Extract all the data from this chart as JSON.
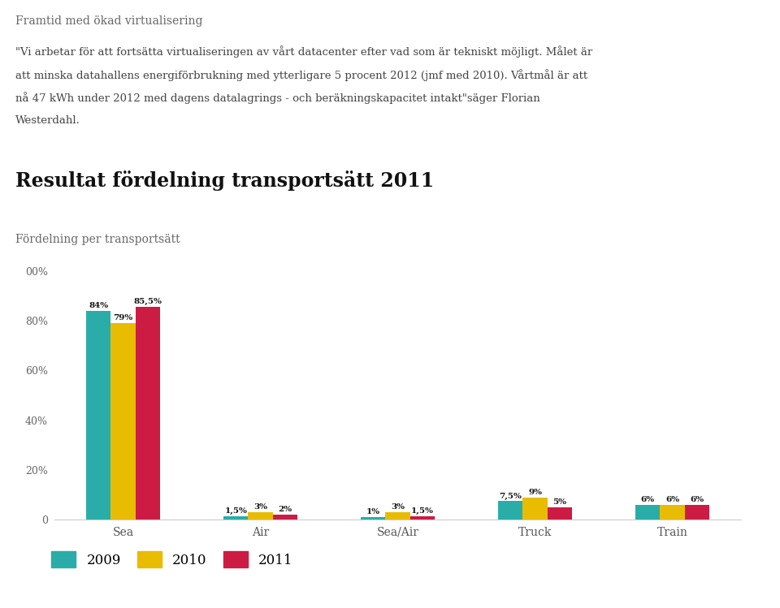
{
  "title_small": "Framtid med ökad virtualisering",
  "quote_line1": "\"Vi arbetar för att fortsätta virtualiseringen av vårt datacenter efter vad som är tekniskt möjligt. Målet är",
  "quote_line2": "att minska datahallens energiförbrukning med ytterligare 5 procent 2012 (jmf med 2010). Vårtmål är att",
  "quote_line3": "nå 47 kWh under 2012 med dagens datalagrings - och beräkningskapacitet intakt\"säger Florian",
  "quote_line4": "Westerdahl.",
  "section_title": "Resultat fördelning transportsätt 2011",
  "chart_subtitle": "Fördelning per transportsätt",
  "categories": [
    "Sea",
    "Air",
    "Sea/Air",
    "Truck",
    "Train"
  ],
  "values_2009": [
    84,
    1.5,
    1,
    7.5,
    6
  ],
  "values_2010": [
    79,
    3,
    3,
    9,
    6
  ],
  "values_2011": [
    85.5,
    2,
    1.5,
    5,
    6
  ],
  "labels_2009": [
    "84%",
    "1,5%",
    "1%",
    "7,5%",
    "6%"
  ],
  "labels_2010": [
    "79%",
    "3%",
    "3%",
    "9%",
    "6%"
  ],
  "labels_2011": [
    "85,5%",
    "2%",
    "1,5%",
    "5%",
    "6%"
  ],
  "color_2009": "#2AADA8",
  "color_2010": "#E8BC00",
  "color_2011": "#CC1C44",
  "legend_labels": [
    "2009",
    "2010",
    "2011"
  ],
  "yticks": [
    0,
    20,
    40,
    60,
    80,
    100
  ],
  "ytick_labels": [
    "0",
    "20%",
    "40%",
    "60%",
    "80%",
    "00%"
  ],
  "background_color": "#FFFFFF",
  "bar_width": 0.18
}
